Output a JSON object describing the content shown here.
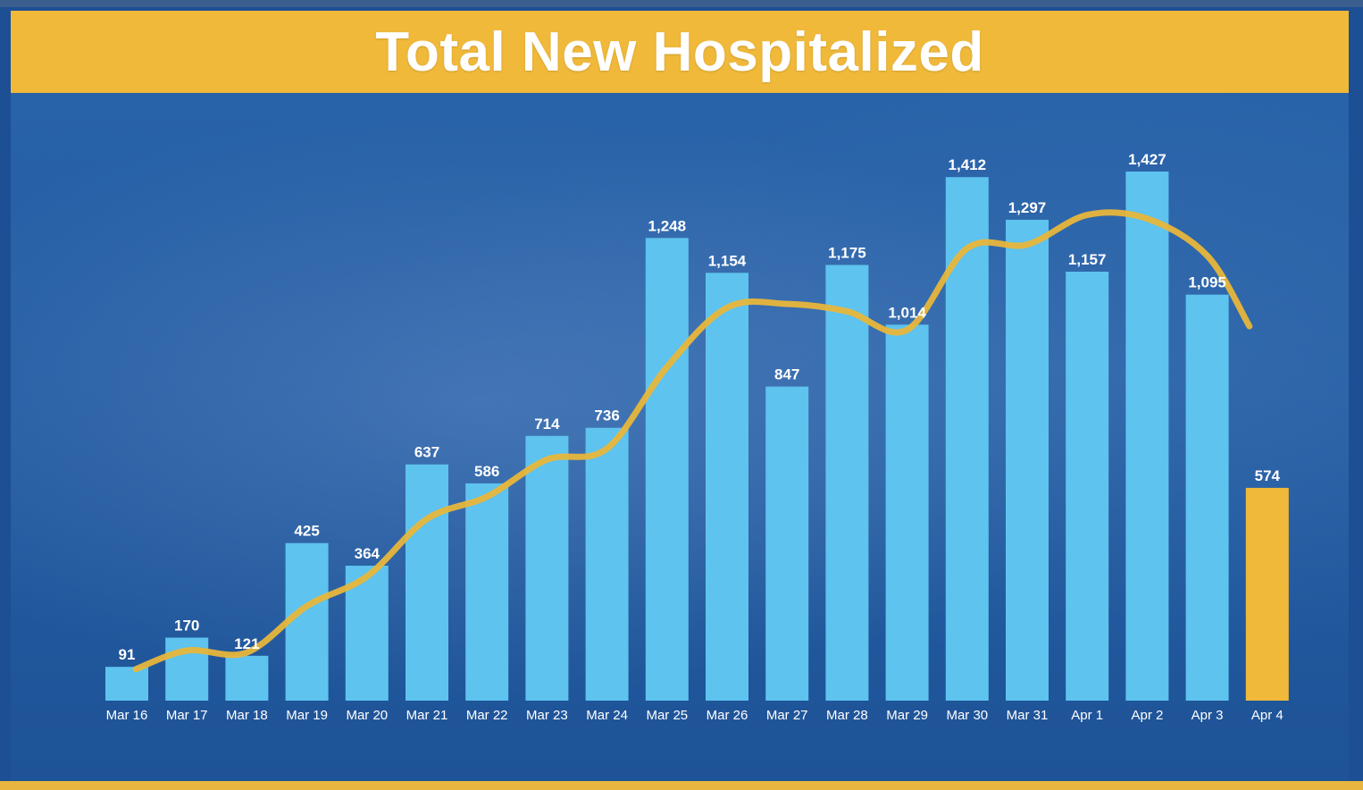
{
  "header": {
    "title": "Total New Hospitalized"
  },
  "colors": {
    "bar": "#5ec3ee",
    "highlight_bar": "#f0b93a",
    "trend_line": "#e8b63a",
    "title_bar": "#f0b93a"
  },
  "chart_data": {
    "type": "bar",
    "title": "Total New Hospitalized",
    "categories": [
      "Mar 16",
      "Mar 17",
      "Mar 18",
      "Mar 19",
      "Mar 20",
      "Mar 21",
      "Mar 22",
      "Mar 23",
      "Mar 24",
      "Mar 25",
      "Mar 26",
      "Mar 27",
      "Mar 28",
      "Mar 29",
      "Mar 30",
      "Mar 31",
      "Apr 1",
      "Apr 2",
      "Apr 3",
      "Apr 4"
    ],
    "series": [
      {
        "values": [
          91,
          170,
          121,
          425,
          364,
          637,
          586,
          714,
          736,
          1248,
          1154,
          847,
          1175,
          1014,
          1412,
          1297,
          1157,
          1427,
          1095,
          574
        ]
      }
    ],
    "value_labels": [
      "91",
      "170",
      "121",
      "425",
      "364",
      "637",
      "586",
      "714",
      "736",
      "1,248",
      "1,154",
      "847",
      "1,175",
      "1,014",
      "1,412",
      "1,297",
      "1,157",
      "1,427",
      "1,095",
      "574"
    ],
    "highlight_index": 19,
    "trend_line": {
      "values": [
        85,
        135,
        130,
        255,
        335,
        490,
        550,
        650,
        680,
        900,
        1060,
        1070,
        1050,
        1000,
        1220,
        1230,
        1310,
        1300,
        1200,
        1010
      ]
    },
    "ylim": [
      0,
      1500
    ],
    "grid": false,
    "legend": "none",
    "xlabel": "",
    "ylabel": ""
  }
}
